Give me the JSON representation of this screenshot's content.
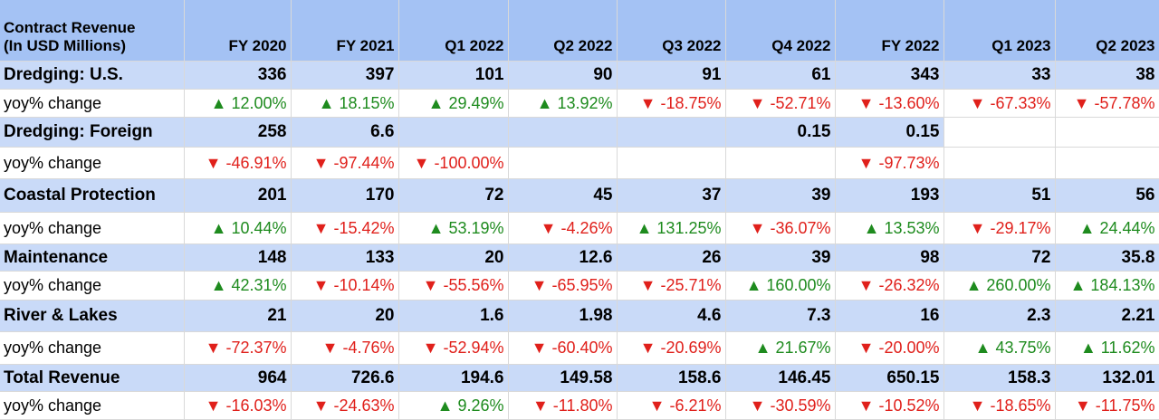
{
  "chart_data": {
    "type": "table",
    "header_label": "Contract Revenue\n(In USD Millions)",
    "columns": [
      "FY 2020",
      "FY 2021",
      "Q1 2022",
      "Q2 2022",
      "Q3 2022",
      "Q4 2022",
      "FY 2022",
      "Q1 2023",
      "Q2 2023"
    ],
    "up_color": "#1e8b1e",
    "down_color": "#e0201b",
    "row_fill": "#c9daf8",
    "header_fill": "#a4c2f4",
    "segments": [
      {
        "name": "Dredging: U.S.",
        "values": [
          "336",
          "397",
          "101",
          "90",
          "91",
          "61",
          "343",
          "33",
          "38"
        ],
        "yoy_label": "yoy% change",
        "yoy": [
          "▲ 12.00%",
          "▲ 18.15%",
          "▲ 29.49%",
          "▲ 13.92%",
          "▼ -18.75%",
          "▼ -52.71%",
          "▼ -13.60%",
          "▼ -67.33%",
          "▼ -57.78%"
        ]
      },
      {
        "name": "Dredging: Foreign",
        "values": [
          "258",
          "6.6",
          "",
          "",
          "",
          "0.15",
          "0.15",
          "",
          ""
        ],
        "yoy_label": "yoy% change",
        "yoy": [
          "▼ -46.91%",
          "▼ -97.44%",
          "▼ -100.00%",
          "",
          "",
          "",
          "▼ -97.73%",
          "",
          ""
        ]
      },
      {
        "name": "Coastal Protection",
        "values": [
          "201",
          "170",
          "72",
          "45",
          "37",
          "39",
          "193",
          "51",
          "56"
        ],
        "yoy_label": "yoy% change",
        "yoy": [
          "▲ 10.44%",
          "▼ -15.42%",
          "▲ 53.19%",
          "▼ -4.26%",
          "▲ 131.25%",
          "▼ -36.07%",
          "▲ 13.53%",
          "▼ -29.17%",
          "▲ 24.44%"
        ]
      },
      {
        "name": "Maintenance",
        "values": [
          "148",
          "133",
          "20",
          "12.6",
          "26",
          "39",
          "98",
          "72",
          "35.8"
        ],
        "yoy_label": "yoy% change",
        "yoy": [
          "▲ 42.31%",
          "▼ -10.14%",
          "▼ -55.56%",
          "▼ -65.95%",
          "▼ -25.71%",
          "▲ 160.00%",
          "▼ -26.32%",
          "▲ 260.00%",
          "▲ 184.13%"
        ]
      },
      {
        "name": "River & Lakes",
        "values": [
          "21",
          "20",
          "1.6",
          "1.98",
          "4.6",
          "7.3",
          "16",
          "2.3",
          "2.21"
        ],
        "yoy_label": "yoy% change",
        "yoy": [
          "▼ -72.37%",
          "▼ -4.76%",
          "▼ -52.94%",
          "▼ -60.40%",
          "▼ -20.69%",
          "▲ 21.67%",
          "▼ -20.00%",
          "▲ 43.75%",
          "▲ 11.62%"
        ]
      },
      {
        "name": "Total Revenue",
        "values": [
          "964",
          "726.6",
          "194.6",
          "149.58",
          "158.6",
          "146.45",
          "650.15",
          "158.3",
          "132.01"
        ],
        "yoy_label": "yoy% change",
        "yoy": [
          "▼ -16.03%",
          "▼ -24.63%",
          "▲ 9.26%",
          "▼ -11.80%",
          "▼ -6.21%",
          "▼ -30.59%",
          "▼ -10.52%",
          "▼ -18.65%",
          "▼ -11.75%"
        ]
      }
    ]
  }
}
